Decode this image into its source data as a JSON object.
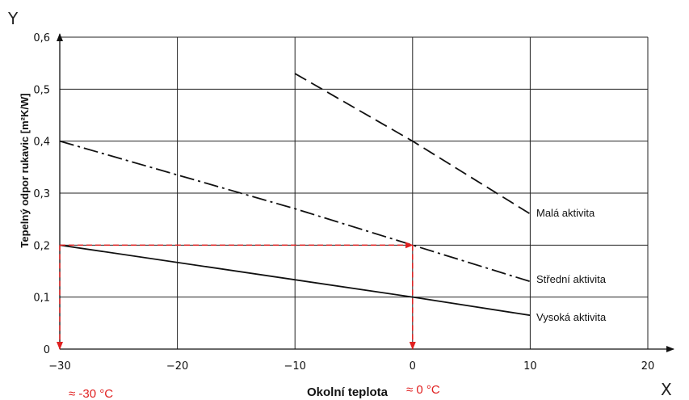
{
  "chart_data": {
    "type": "line",
    "x_axis_letter": "X",
    "y_axis_letter": "Y",
    "xlabel": "Okolní teplota",
    "ylabel": "Tepelný odpor rukavic [m²K/W]",
    "xlim": [
      -30,
      20
    ],
    "ylim": [
      0,
      0.6
    ],
    "x_ticks": [
      -30,
      -20,
      -10,
      0,
      10,
      20
    ],
    "x_tick_labels": [
      "−30",
      "−20",
      "−10",
      "0",
      "10",
      "20"
    ],
    "y_ticks": [
      0,
      0.1,
      0.2,
      0.3,
      0.4,
      0.5,
      0.6
    ],
    "y_tick_labels": [
      "0",
      "0,1",
      "0,2",
      "0,3",
      "0,4",
      "0,5",
      "0,6"
    ],
    "grid": true,
    "series": [
      {
        "name": "Malá aktivita",
        "style": "dash",
        "x": [
          -10,
          0,
          10
        ],
        "y": [
          0.53,
          0.4,
          0.26
        ]
      },
      {
        "name": "Střední aktivita",
        "style": "dash-dot",
        "x": [
          -30,
          -20,
          -10,
          0,
          10
        ],
        "y": [
          0.4,
          0.335,
          0.27,
          0.2,
          0.13
        ]
      },
      {
        "name": "Vysoká aktivita",
        "style": "solid",
        "x": [
          -30,
          0,
          10
        ],
        "y": [
          0.2,
          0.1,
          0.065
        ]
      }
    ],
    "annotations": [
      {
        "text": "≈ -30 °C",
        "x": -30
      },
      {
        "text": "≈ 0 °C",
        "x": 0
      }
    ],
    "guide_lines": {
      "color": "#e02020",
      "y_level": 0.2,
      "from_x": -30,
      "to_x": 0
    }
  }
}
